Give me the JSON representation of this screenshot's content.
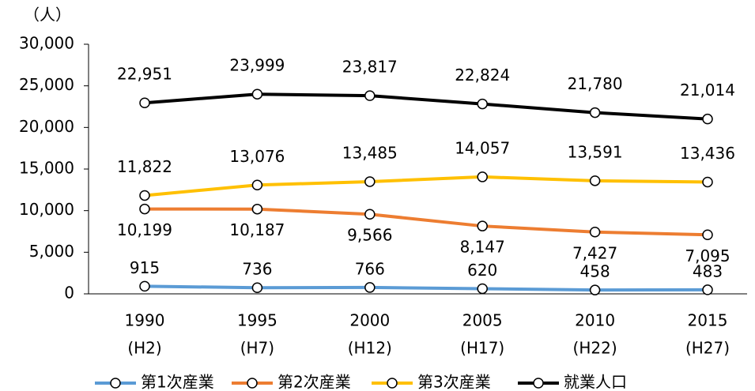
{
  "chart_data": {
    "type": "line",
    "unit_label": "（人）",
    "categories": [
      "1990",
      "1995",
      "2000",
      "2005",
      "2010",
      "2015"
    ],
    "category_sublabels": [
      "(H2)",
      "(H7)",
      "(H12)",
      "(H17)",
      "(H22)",
      "(H27)"
    ],
    "series": [
      {
        "name": "第1次産業",
        "color": "#5b9bd5",
        "values": [
          915,
          736,
          766,
          620,
          458,
          483
        ],
        "value_labels": [
          "915",
          "736",
          "766",
          "620",
          "458",
          "483"
        ]
      },
      {
        "name": "第2次産業",
        "color": "#ed7d31",
        "values": [
          10199,
          10187,
          9566,
          8147,
          7427,
          7095
        ],
        "value_labels": [
          "10,199",
          "10,187",
          "9,566",
          "8,147",
          "7,427",
          "7,095"
        ]
      },
      {
        "name": "第3次産業",
        "color": "#ffc000",
        "values": [
          11822,
          13076,
          13485,
          14057,
          13591,
          13436
        ],
        "value_labels": [
          "11,822",
          "13,076",
          "13,485",
          "14,057",
          "13,591",
          "13,436"
        ]
      },
      {
        "name": "就業人口",
        "color": "#000000",
        "values": [
          22951,
          23999,
          23817,
          22824,
          21780,
          21014
        ],
        "value_labels": [
          "22,951",
          "23,999",
          "23,817",
          "22,824",
          "21,780",
          "21,014"
        ]
      }
    ],
    "ylim": [
      0,
      30000
    ],
    "yticks": [
      0,
      {
        "value": 5000,
        "label": "5,000"
      },
      {
        "value": 10000,
        "label": "10,000"
      },
      {
        "value": 15000,
        "label": "15,000"
      },
      {
        "value": 20000,
        "label": "20,000"
      },
      {
        "value": 25000,
        "label": "25,000"
      },
      {
        "value": 30000,
        "label": "30,000"
      }
    ],
    "grid": false,
    "legend": "bottom"
  }
}
